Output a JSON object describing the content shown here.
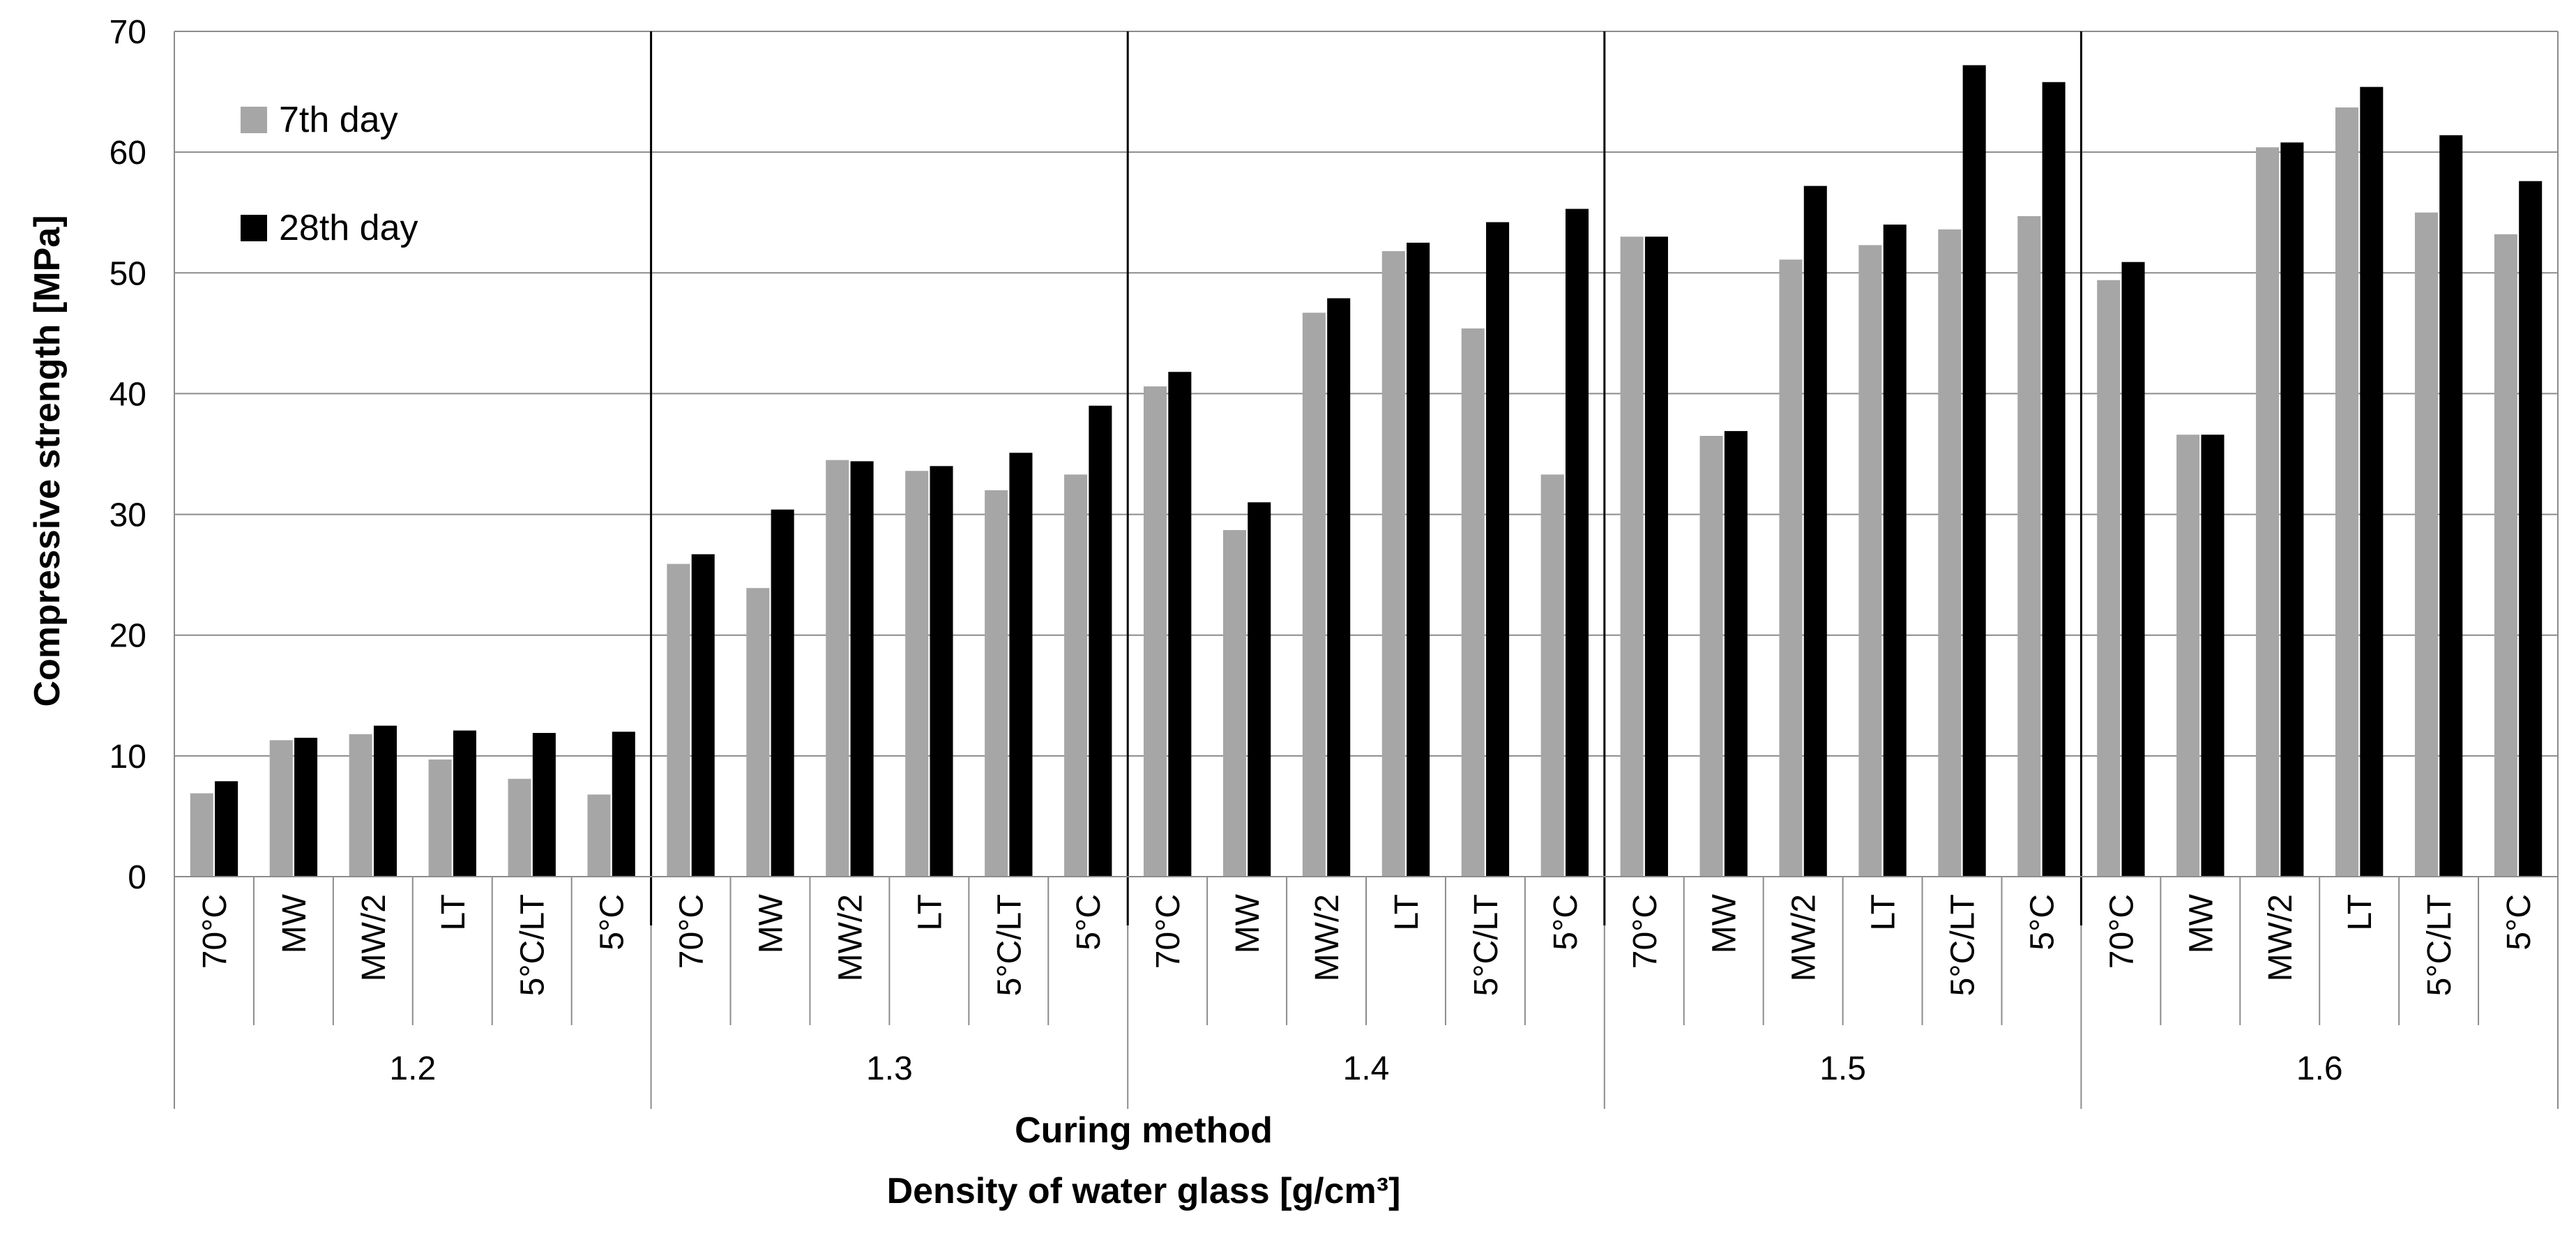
{
  "chart_data": {
    "type": "bar",
    "xlabel": "Curing method",
    "xlabel2": "Density of water glass [g/cm³]",
    "ylabel": "Compressive strength [MPa]",
    "ylim": [
      0,
      70
    ],
    "yticks": [
      0,
      10,
      20,
      30,
      40,
      50,
      60,
      70
    ],
    "grid": true,
    "legend_position": "top-left",
    "groups": [
      "1.2",
      "1.3",
      "1.4",
      "1.5",
      "1.6"
    ],
    "categories": [
      "70°C",
      "MW",
      "MW/2",
      "LT",
      "5°C/LT",
      "5°C"
    ],
    "series": [
      {
        "name": "7th day",
        "color": "#a6a6a6",
        "values": [
          [
            6.9,
            11.3,
            11.8,
            9.7,
            8.1,
            6.8
          ],
          [
            25.9,
            23.9,
            34.5,
            33.6,
            32.0,
            33.3
          ],
          [
            40.6,
            28.7,
            46.7,
            51.8,
            45.4,
            33.3
          ],
          [
            53.0,
            36.5,
            51.1,
            52.3,
            53.6,
            54.7
          ],
          [
            49.4,
            36.6,
            60.4,
            63.7,
            55.0,
            53.2
          ]
        ]
      },
      {
        "name": "28th day",
        "color": "#000000",
        "values": [
          [
            7.9,
            11.5,
            12.5,
            12.1,
            11.9,
            12.0
          ],
          [
            26.7,
            30.4,
            34.4,
            34.0,
            35.1,
            39.0
          ],
          [
            41.8,
            31.0,
            47.9,
            52.5,
            54.2,
            55.3
          ],
          [
            53.0,
            36.9,
            57.2,
            54.0,
            67.2,
            65.8
          ],
          [
            50.9,
            36.6,
            60.8,
            65.4,
            61.4,
            57.6
          ]
        ]
      }
    ]
  }
}
